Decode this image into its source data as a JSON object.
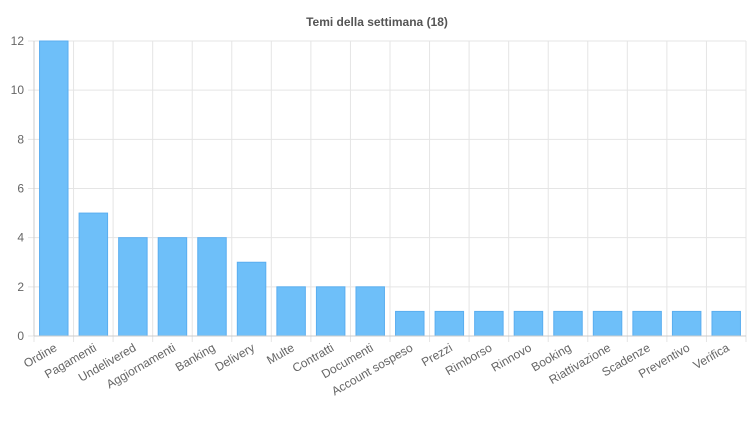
{
  "chart_data": {
    "type": "bar",
    "title": "Temi della settimana (18)",
    "xlabel": "",
    "ylabel": "",
    "ylim": [
      0,
      12
    ],
    "yticks": [
      0,
      2,
      4,
      6,
      8,
      10,
      12
    ],
    "grid": true,
    "legend": "none",
    "categories": [
      "Ordine",
      "Pagamenti",
      "Undelivered",
      "Aggiornamenti",
      "Banking",
      "Delivery",
      "Multe",
      "Contratti",
      "Documenti",
      "Account sospeso",
      "Prezzi",
      "Rimborso",
      "Rinnovo",
      "Booking",
      "Riattivazione",
      "Scadenze",
      "Preventivo",
      "Verifica"
    ],
    "values": [
      12,
      5,
      4,
      4,
      4,
      3,
      2,
      2,
      2,
      1,
      1,
      1,
      1,
      1,
      1,
      1,
      1,
      1
    ],
    "colors": {
      "bar_fill": "#6ebff9",
      "bar_stroke": "#5aaef0",
      "grid": "#e5e5e5",
      "axis": "#cccccc",
      "tick_text": "#666666",
      "title_text": "#555555"
    }
  }
}
